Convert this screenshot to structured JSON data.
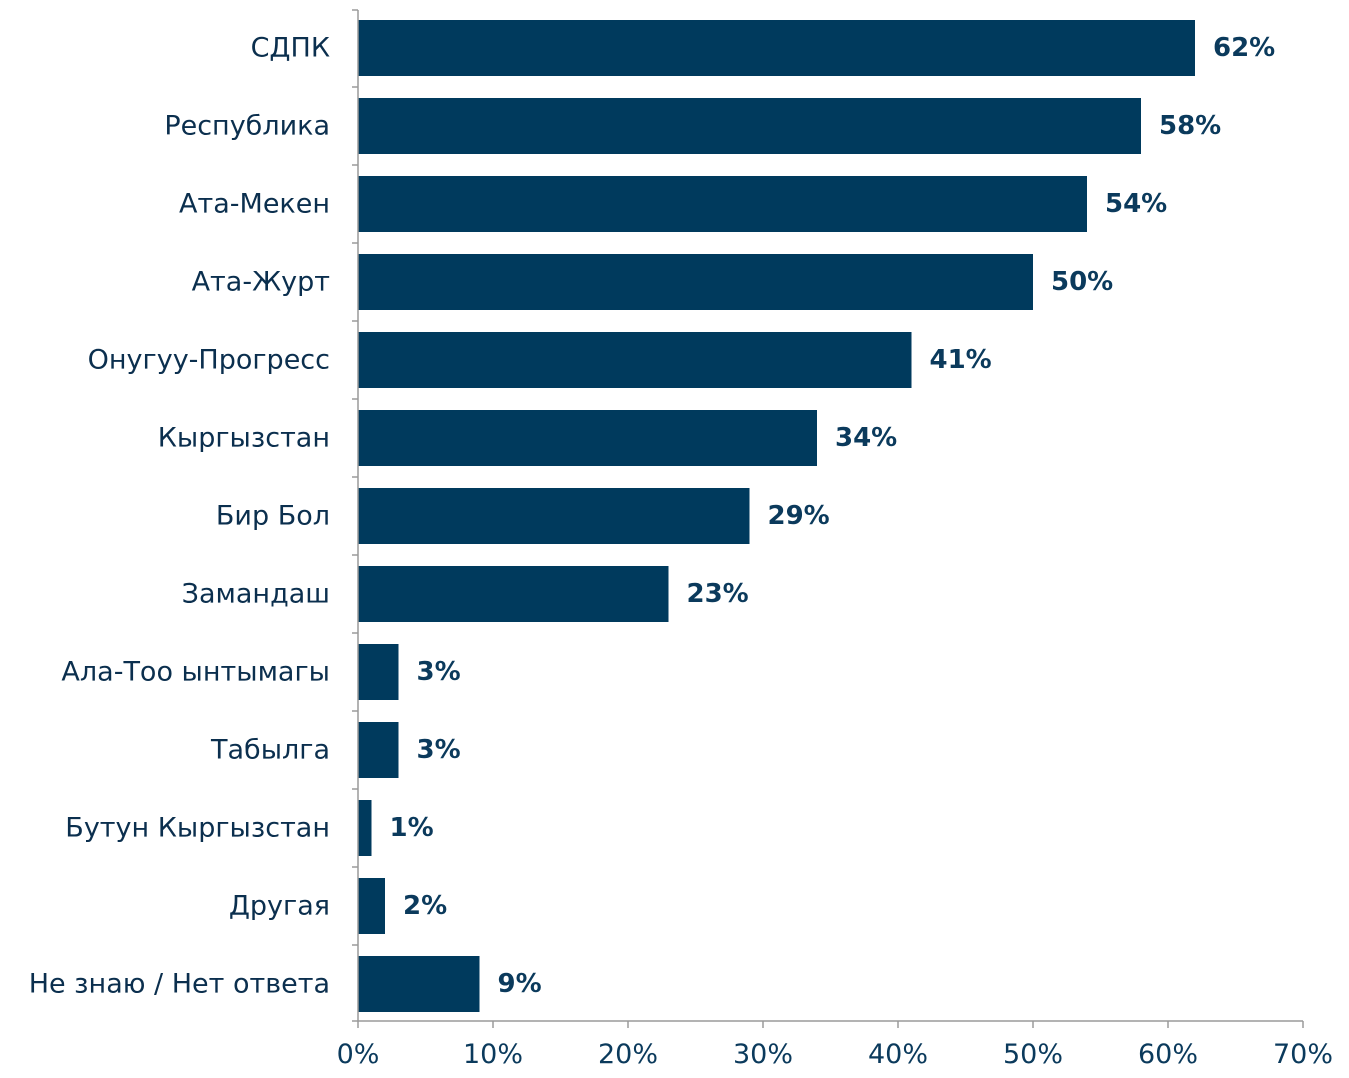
{
  "chart_data": {
    "type": "bar",
    "orientation": "horizontal",
    "categories": [
      "СДПК",
      "Республика",
      "Ата-Мекен",
      "Ата-Журт",
      "Онугуу-Прогресс",
      "Кыргызстан",
      "Бир Бол",
      "Замандаш",
      "Ала-Тоо ынтымагы",
      "Табылга",
      "Бутун Кыргызстан",
      "Другая",
      "Не знаю / Нет ответа"
    ],
    "values": [
      62,
      58,
      54,
      50,
      41,
      34,
      29,
      23,
      3,
      3,
      1,
      2,
      9
    ],
    "value_labels": [
      "62%",
      "58%",
      "54%",
      "50%",
      "41%",
      "34%",
      "29%",
      "23%",
      "3%",
      "3%",
      "1%",
      "2%",
      "9%"
    ],
    "xlim": [
      0,
      70
    ],
    "x_ticks": [
      0,
      10,
      20,
      30,
      40,
      50,
      60,
      70
    ],
    "x_tick_labels": [
      "0%",
      "10%",
      "20%",
      "30%",
      "40%",
      "50%",
      "60%",
      "70%"
    ],
    "grid": false,
    "bar_color": "#003a5d",
    "label_color": "#0b3a5c"
  }
}
